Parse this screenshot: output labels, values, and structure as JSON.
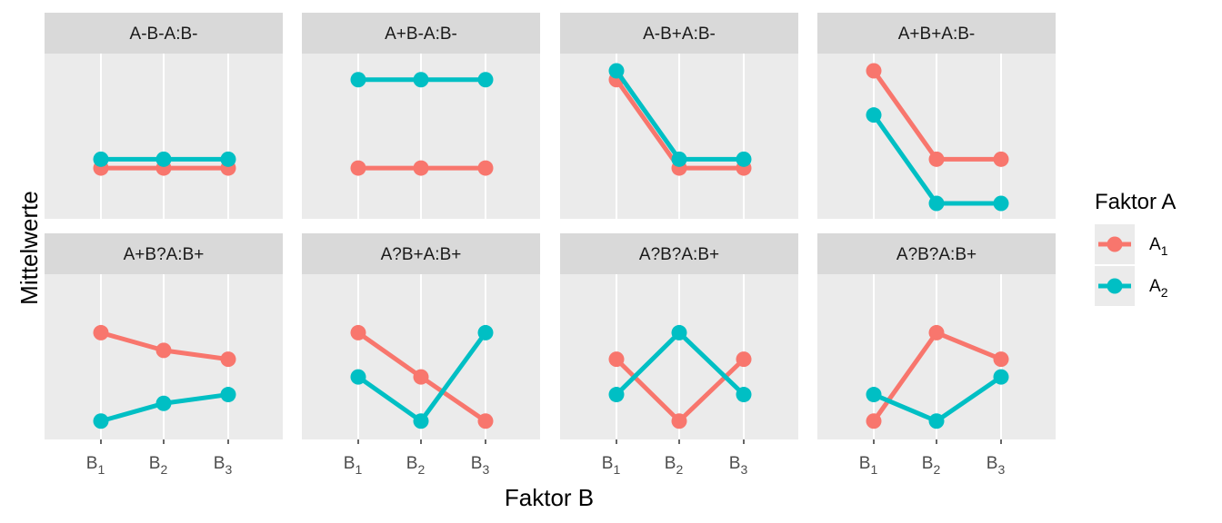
{
  "chart_data": {
    "type": "line",
    "xlabel": "Faktor B",
    "ylabel": "Mittelwerte",
    "categories": [
      {
        "main": "B",
        "sub": "1"
      },
      {
        "main": "B",
        "sub": "2"
      },
      {
        "main": "B",
        "sub": "3"
      }
    ],
    "legend": {
      "title": "Faktor A",
      "position": "right",
      "entries": [
        {
          "main": "A",
          "sub": "1",
          "color": "#F8766D"
        },
        {
          "main": "A",
          "sub": "2",
          "color": "#00BFC4"
        }
      ]
    },
    "grid": true,
    "ylim": [
      0,
      10
    ],
    "panels": [
      {
        "title": "A-B-A:B-",
        "series": [
          {
            "name": "A1",
            "values": [
              5.3,
              5.3,
              5.3
            ]
          },
          {
            "name": "A2",
            "values": [
              5.6,
              5.6,
              5.6
            ]
          }
        ]
      },
      {
        "title": "A+B-A:B-",
        "series": [
          {
            "name": "A1",
            "values": [
              5.3,
              5.3,
              5.3
            ]
          },
          {
            "name": "A2",
            "values": [
              8.3,
              8.3,
              8.3
            ]
          }
        ]
      },
      {
        "title": "A-B+A:B-",
        "series": [
          {
            "name": "A1",
            "values": [
              8.3,
              5.3,
              5.3
            ]
          },
          {
            "name": "A2",
            "values": [
              8.6,
              5.6,
              5.6
            ]
          }
        ]
      },
      {
        "title": "A+B+A:B-",
        "series": [
          {
            "name": "A1",
            "values": [
              8.6,
              5.6,
              5.6
            ]
          },
          {
            "name": "A2",
            "values": [
              7.1,
              4.1,
              4.1
            ]
          }
        ]
      },
      {
        "title": "A+B?A:B+",
        "series": [
          {
            "name": "A1",
            "values": [
              7.2,
              6.6,
              6.3
            ]
          },
          {
            "name": "A2",
            "values": [
              4.2,
              4.8,
              5.1
            ]
          }
        ]
      },
      {
        "title": "A?B+A:B+",
        "series": [
          {
            "name": "A1",
            "values": [
              7.2,
              5.7,
              4.2
            ]
          },
          {
            "name": "A2",
            "values": [
              5.7,
              4.2,
              7.2
            ]
          }
        ]
      },
      {
        "title": "A?B?A:B+",
        "series": [
          {
            "name": "A1",
            "values": [
              6.3,
              4.2,
              6.3
            ]
          },
          {
            "name": "A2",
            "values": [
              5.1,
              7.2,
              5.1
            ]
          }
        ]
      },
      {
        "title": "A?B?A:B+",
        "series": [
          {
            "name": "A1",
            "values": [
              4.2,
              7.2,
              6.3
            ]
          },
          {
            "name": "A2",
            "values": [
              5.1,
              4.2,
              5.7
            ]
          }
        ]
      }
    ]
  }
}
